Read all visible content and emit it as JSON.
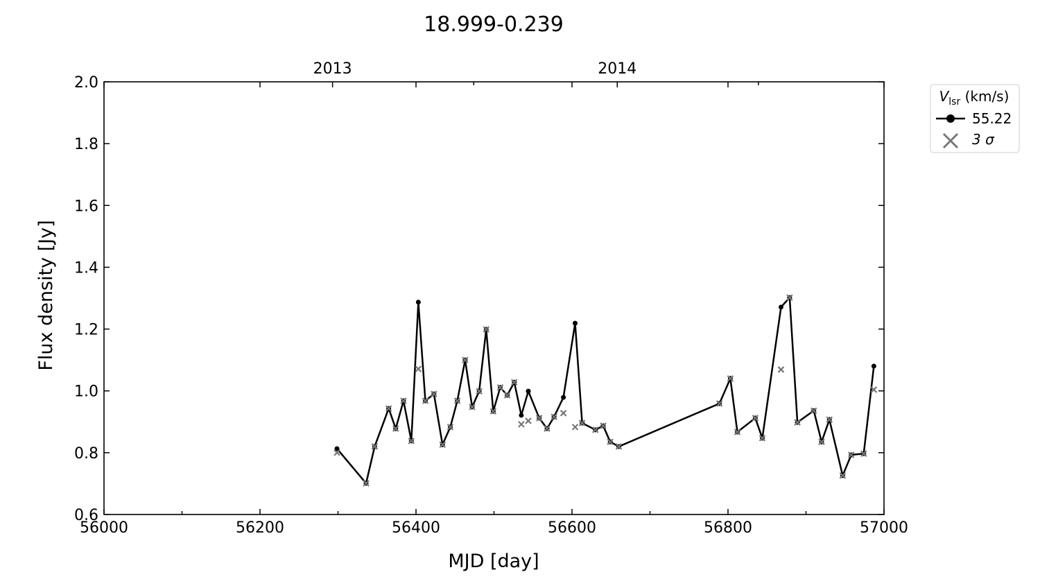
{
  "chart_data": {
    "type": "line",
    "title": "18.999-0.239",
    "xlabel": "MJD [day]",
    "ylabel": "Flux density [Jy]",
    "x": [
      56298.7,
      56336,
      56347,
      56365,
      56374,
      56384,
      56394,
      56403,
      56412,
      56423,
      56434,
      56444,
      56453,
      56463,
      56472,
      56481,
      56490,
      56499,
      56508,
      56517,
      56526,
      56535,
      56544,
      56558,
      56568,
      56577,
      56589,
      56604,
      56613,
      56630,
      56640,
      56649,
      56660,
      56789,
      56803,
      56812,
      56835,
      56844,
      56868,
      56879,
      56889,
      56910,
      56920,
      56930,
      56947,
      56958,
      56974,
      56987
    ],
    "series": [
      {
        "name": "55.22",
        "color": "#000000",
        "values": [
          0.813,
          0.701,
          0.82,
          0.943,
          0.878,
          0.968,
          0.838,
          1.287,
          0.968,
          0.99,
          0.826,
          0.883,
          0.968,
          1.1,
          0.948,
          0.999,
          1.199,
          0.934,
          1.011,
          0.986,
          1.028,
          0.921,
          0.999,
          0.912,
          0.878,
          0.916,
          0.979,
          1.219,
          0.896,
          0.874,
          0.887,
          0.835,
          0.82,
          0.959,
          1.04,
          0.867,
          0.912,
          0.847,
          1.271,
          1.302,
          0.898,
          0.936,
          0.835,
          0.907,
          0.726,
          0.793,
          0.797,
          1.08
        ]
      },
      {
        "name": "3 σ",
        "color": "#777777",
        "values": [
          0.8,
          0.701,
          0.82,
          0.943,
          0.878,
          0.968,
          0.838,
          1.071,
          0.968,
          0.99,
          0.826,
          0.883,
          0.968,
          1.1,
          0.948,
          0.999,
          1.199,
          0.934,
          1.011,
          0.986,
          1.028,
          0.892,
          0.903,
          0.912,
          0.878,
          0.916,
          0.928,
          0.883,
          0.896,
          0.874,
          0.887,
          0.835,
          0.82,
          0.959,
          1.04,
          0.867,
          0.912,
          0.847,
          1.069,
          1.302,
          0.898,
          0.936,
          0.835,
          0.907,
          0.726,
          0.793,
          0.797,
          1.004
        ]
      }
    ],
    "xlim": [
      56000,
      57000
    ],
    "xticks": [
      56000,
      56200,
      56400,
      56600,
      56800,
      57000
    ],
    "xticks_minor": [
      56100,
      56300,
      56500,
      56700,
      56900
    ],
    "top_ticks": [
      {
        "value": 56293,
        "label": "2013"
      },
      {
        "value": 56658,
        "label": "2014"
      }
    ],
    "top_ticks_minor": [
      56474,
      56839
    ],
    "ylim": [
      0.6,
      2.0
    ],
    "yticks": [
      0.6,
      0.8,
      {
        "value": 1.0,
        "label": "1.0"
      },
      1.2,
      1.4,
      1.6,
      1.8,
      {
        "value": 2.0,
        "label": "2.0"
      }
    ],
    "legend_title": {
      "symbol": "V",
      "subscript": "lsr",
      "unit": "(km/s)"
    },
    "legend": "upper-right-outside"
  }
}
